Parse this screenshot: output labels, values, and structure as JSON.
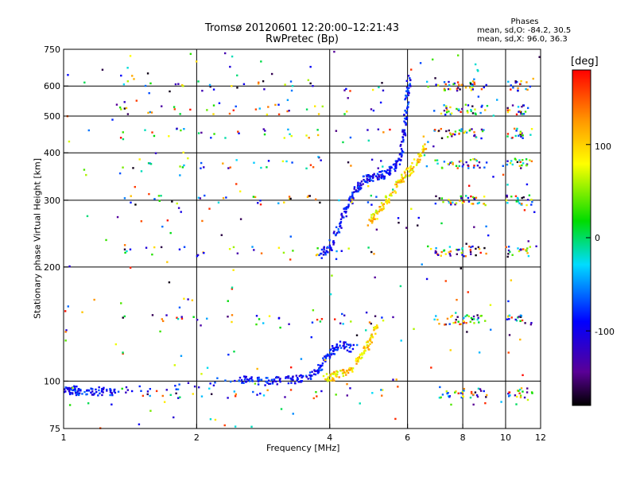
{
  "header": {
    "title_line1": "Tromsø 20120601 12:20:00–12:21:43",
    "title_line2": "RwPretec (Bp)"
  },
  "phases": {
    "heading": "Phases",
    "o_label": "mean, sd,O:",
    "o_values": "-84.2, 30.5",
    "x_label": "mean, sd,X:",
    "x_values": "96.0, 36.3"
  },
  "colorbar": {
    "label": "[deg]",
    "ticks": [
      "100",
      "0",
      "-100"
    ],
    "range": [
      -180,
      180
    ],
    "colormap": "rainbow"
  },
  "chart_data": {
    "type": "scatter",
    "title": "Tromsø 20120601 12:20:00–12:21:43",
    "subtitle": "RwPretec (Bp)",
    "xlabel": "Frequency [MHz]",
    "ylabel": "Stationary phase Virtual Height [km]",
    "xscale": "log",
    "yscale": "log",
    "xlim": [
      1,
      12
    ],
    "ylim": [
      75,
      750
    ],
    "xticks": [
      "1",
      "2",
      "4",
      "6",
      "8",
      "10",
      "12"
    ],
    "yticks": [
      "750",
      "600",
      "500",
      "400",
      "300",
      "200",
      "100",
      "75"
    ],
    "grid_x": [
      2,
      4,
      6,
      8,
      10
    ],
    "grid_y": [
      100,
      200,
      300,
      400,
      500,
      600
    ],
    "series": [
      {
        "mode": "O",
        "trace": [
          {
            "x": 1.0,
            "y": 94
          },
          {
            "x": 1.05,
            "y": 95
          },
          {
            "x": 1.1,
            "y": 93
          },
          {
            "x": 1.2,
            "y": 94
          },
          {
            "x": 1.3,
            "y": 94
          },
          {
            "x": 2.5,
            "y": 101
          },
          {
            "x": 2.7,
            "y": 100
          },
          {
            "x": 3.0,
            "y": 100
          },
          {
            "x": 3.3,
            "y": 101
          },
          {
            "x": 3.6,
            "y": 103
          },
          {
            "x": 3.8,
            "y": 108
          },
          {
            "x": 4.0,
            "y": 118
          },
          {
            "x": 4.2,
            "y": 125
          },
          {
            "x": 4.5,
            "y": 122
          },
          {
            "x": 3.8,
            "y": 215
          },
          {
            "x": 4.0,
            "y": 225
          },
          {
            "x": 4.2,
            "y": 255
          },
          {
            "x": 4.4,
            "y": 290
          },
          {
            "x": 4.6,
            "y": 320
          },
          {
            "x": 4.8,
            "y": 340
          },
          {
            "x": 5.0,
            "y": 345
          },
          {
            "x": 5.3,
            "y": 350
          },
          {
            "x": 5.6,
            "y": 365
          },
          {
            "x": 5.8,
            "y": 395
          },
          {
            "x": 5.9,
            "y": 470
          },
          {
            "x": 6.0,
            "y": 560
          },
          {
            "x": 6.05,
            "y": 640
          }
        ]
      },
      {
        "mode": "X",
        "trace": [
          {
            "x": 3.9,
            "y": 102
          },
          {
            "x": 4.1,
            "y": 103
          },
          {
            "x": 4.4,
            "y": 106
          },
          {
            "x": 4.7,
            "y": 115
          },
          {
            "x": 4.9,
            "y": 125
          },
          {
            "x": 5.1,
            "y": 140
          },
          {
            "x": 4.9,
            "y": 260
          },
          {
            "x": 5.1,
            "y": 275
          },
          {
            "x": 5.4,
            "y": 300
          },
          {
            "x": 5.7,
            "y": 330
          },
          {
            "x": 6.0,
            "y": 355
          },
          {
            "x": 6.3,
            "y": 380
          },
          {
            "x": 6.6,
            "y": 420
          }
        ]
      }
    ],
    "echo_bands_km": [
      93,
      145,
      220,
      300,
      375,
      450,
      520,
      600
    ],
    "phase_range_deg": [
      -180,
      180
    ]
  }
}
